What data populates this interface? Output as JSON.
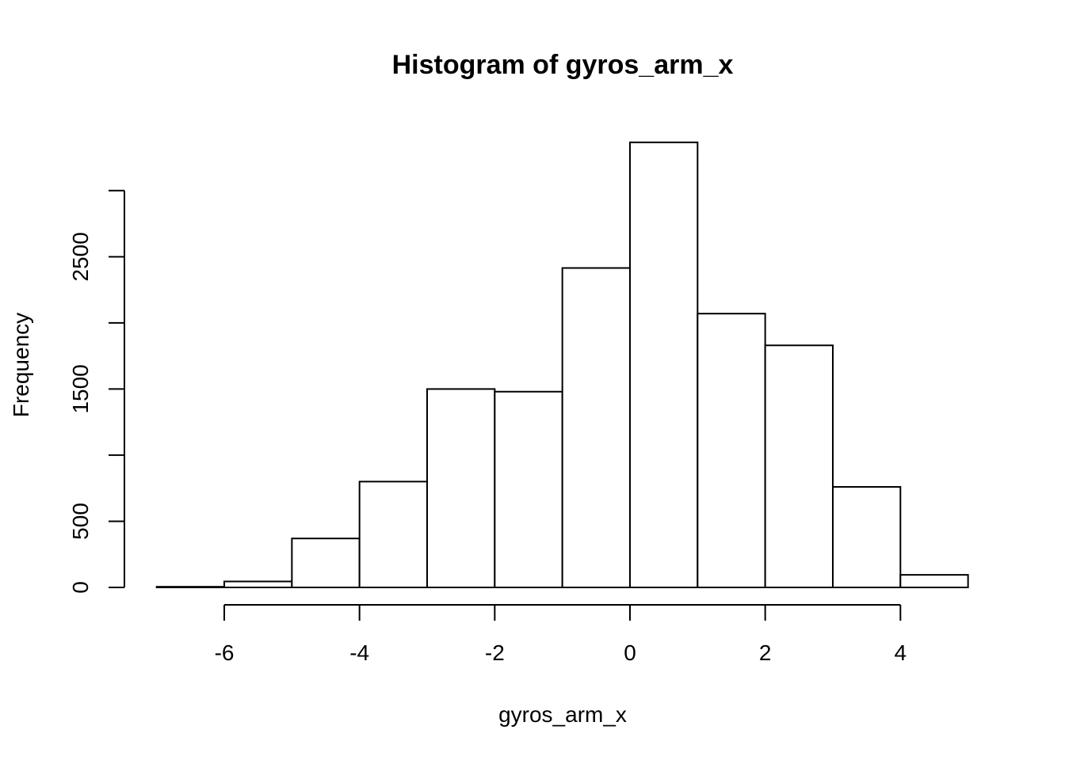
{
  "chart_data": {
    "type": "bar",
    "title": "Histogram of gyros_arm_x",
    "xlabel": "gyros_arm_x",
    "ylabel": "Frequency",
    "bins": [
      {
        "from": -7,
        "to": -6,
        "count": 5
      },
      {
        "from": -6,
        "to": -5,
        "count": 45
      },
      {
        "from": -5,
        "to": -4,
        "count": 370
      },
      {
        "from": -4,
        "to": -3,
        "count": 800
      },
      {
        "from": -3,
        "to": -2,
        "count": 1500
      },
      {
        "from": -2,
        "to": -1,
        "count": 1480
      },
      {
        "from": -1,
        "to": 0,
        "count": 2415
      },
      {
        "from": 0,
        "to": 1,
        "count": 3365
      },
      {
        "from": 1,
        "to": 2,
        "count": 2070
      },
      {
        "from": 2,
        "to": 3,
        "count": 1830
      },
      {
        "from": 3,
        "to": 4,
        "count": 760
      },
      {
        "from": 4,
        "to": 5,
        "count": 95
      }
    ],
    "x_ticks": [
      {
        "value": -6,
        "label": "-6"
      },
      {
        "value": -4,
        "label": "-4"
      },
      {
        "value": -2,
        "label": "-2"
      },
      {
        "value": 0,
        "label": "0"
      },
      {
        "value": 2,
        "label": "2"
      },
      {
        "value": 4,
        "label": "4"
      }
    ],
    "y_ticks": [
      {
        "value": 0,
        "label": "0"
      },
      {
        "value": 500,
        "label": "500"
      },
      {
        "value": 1000,
        "label": ""
      },
      {
        "value": 1500,
        "label": "1500"
      },
      {
        "value": 2000,
        "label": ""
      },
      {
        "value": 2500,
        "label": "2500"
      },
      {
        "value": 3000,
        "label": ""
      }
    ],
    "grid": false,
    "bar_fill": "#ffffff",
    "stroke_color": "#000000"
  }
}
